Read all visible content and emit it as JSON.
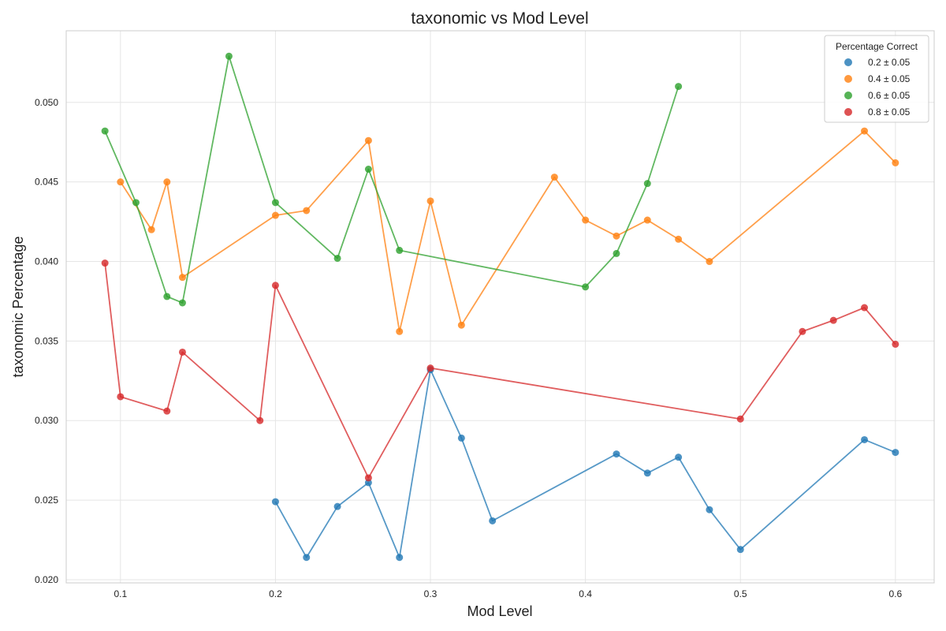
{
  "chart_data": {
    "type": "line",
    "title": "taxonomic vs Mod Level",
    "xlabel": "Mod Level",
    "ylabel": "taxonomic Percentage",
    "xlim": [
      0.065,
      0.625
    ],
    "ylim": [
      0.0198,
      0.0545
    ],
    "xticks": [
      0.1,
      0.2,
      0.3,
      0.4,
      0.5,
      0.6
    ],
    "xtick_labels": [
      "0.1",
      "0.2",
      "0.3",
      "0.4",
      "0.5",
      "0.6"
    ],
    "yticks": [
      0.02,
      0.025,
      0.03,
      0.035,
      0.04,
      0.045,
      0.05
    ],
    "ytick_labels": [
      "0.020",
      "0.025",
      "0.030",
      "0.035",
      "0.040",
      "0.045",
      "0.050"
    ],
    "grid": true,
    "legend": {
      "title": "Percentage Correct",
      "placement": "top-right"
    },
    "series": [
      {
        "name": "0.2 ± 0.05",
        "color": "#1f77b4",
        "points": [
          [
            0.2,
            0.0249
          ],
          [
            0.22,
            0.0214
          ],
          [
            0.24,
            0.0246
          ],
          [
            0.26,
            0.0261
          ],
          [
            0.28,
            0.0214
          ],
          [
            0.3,
            0.0332
          ],
          [
            0.32,
            0.0289
          ],
          [
            0.34,
            0.0237
          ],
          [
            0.42,
            0.0279
          ],
          [
            0.44,
            0.0267
          ],
          [
            0.46,
            0.0277
          ],
          [
            0.48,
            0.0244
          ],
          [
            0.5,
            0.0219
          ],
          [
            0.58,
            0.0288
          ],
          [
            0.6,
            0.028
          ]
        ]
      },
      {
        "name": "0.4 ± 0.05",
        "color": "#ff7f0e",
        "points": [
          [
            0.1,
            0.045
          ],
          [
            0.12,
            0.042
          ],
          [
            0.13,
            0.045
          ],
          [
            0.14,
            0.039
          ],
          [
            0.2,
            0.0429
          ],
          [
            0.22,
            0.0432
          ],
          [
            0.26,
            0.0476
          ],
          [
            0.28,
            0.0356
          ],
          [
            0.3,
            0.0438
          ],
          [
            0.32,
            0.036
          ],
          [
            0.38,
            0.0453
          ],
          [
            0.4,
            0.0426
          ],
          [
            0.42,
            0.0416
          ],
          [
            0.44,
            0.0426
          ],
          [
            0.46,
            0.0414
          ],
          [
            0.48,
            0.04
          ],
          [
            0.58,
            0.0482
          ],
          [
            0.6,
            0.0462
          ]
        ]
      },
      {
        "name": "0.6 ± 0.05",
        "color": "#2ca02c",
        "points": [
          [
            0.09,
            0.0482
          ],
          [
            0.11,
            0.0437
          ],
          [
            0.13,
            0.0378
          ],
          [
            0.14,
            0.0374
          ],
          [
            0.17,
            0.0529
          ],
          [
            0.2,
            0.0437
          ],
          [
            0.24,
            0.0402
          ],
          [
            0.26,
            0.0458
          ],
          [
            0.28,
            0.0407
          ],
          [
            0.4,
            0.0384
          ],
          [
            0.42,
            0.0405
          ],
          [
            0.44,
            0.0449
          ],
          [
            0.46,
            0.051
          ]
        ]
      },
      {
        "name": "0.8 ± 0.05",
        "color": "#d62728",
        "points": [
          [
            0.09,
            0.0399
          ],
          [
            0.1,
            0.0315
          ],
          [
            0.13,
            0.0306
          ],
          [
            0.14,
            0.0343
          ],
          [
            0.19,
            0.03
          ],
          [
            0.2,
            0.0385
          ],
          [
            0.26,
            0.0264
          ],
          [
            0.3,
            0.0333
          ],
          [
            0.5,
            0.0301
          ],
          [
            0.54,
            0.0356
          ],
          [
            0.56,
            0.0363
          ],
          [
            0.58,
            0.0371
          ],
          [
            0.6,
            0.0348
          ]
        ]
      }
    ]
  }
}
